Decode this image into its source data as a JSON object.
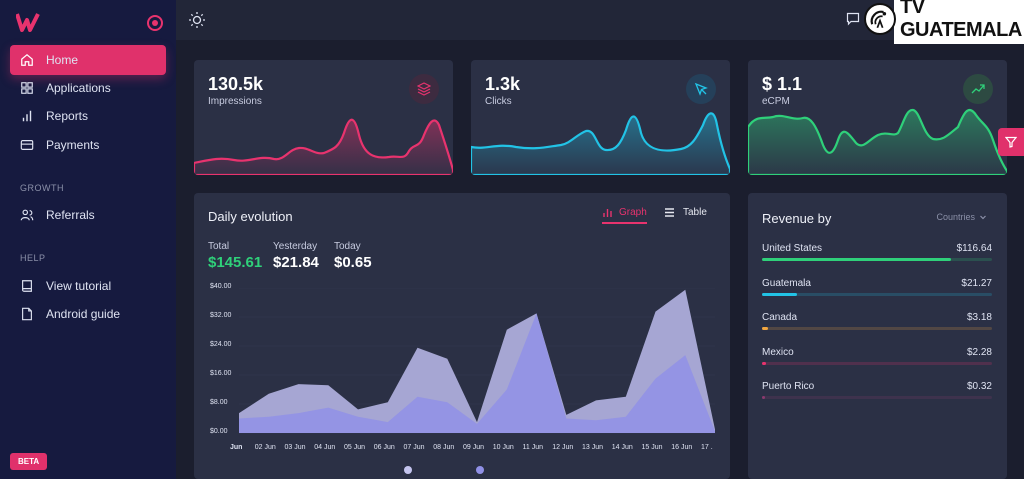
{
  "sidebar": {
    "logo_name": "w-logo",
    "items": [
      {
        "label": "Home",
        "icon": "home-icon"
      },
      {
        "label": "Applications",
        "icon": "grid-icon"
      },
      {
        "label": "Reports",
        "icon": "bar-chart-icon"
      },
      {
        "label": "Payments",
        "icon": "card-icon"
      },
      {
        "label": "Referrals",
        "icon": "users-icon"
      },
      {
        "label": "View tutorial",
        "icon": "book-icon"
      },
      {
        "label": "Android guide",
        "icon": "file-icon"
      }
    ],
    "sections": {
      "growth": "GROWTH",
      "help": "HELP"
    },
    "beta_label": "BETA"
  },
  "topbar": {
    "brand_text": "TV GUATEMALA"
  },
  "stats": [
    {
      "value": "130.5k",
      "label": "Impressions",
      "color": "#e8336e",
      "icon": "layers-icon"
    },
    {
      "value": "1.3k",
      "label": "Clicks",
      "color": "#22c3e6",
      "icon": "cursor-icon"
    },
    {
      "value": "$ 1.1",
      "label": "eCPM",
      "color": "#2fd07a",
      "icon": "trending-up-icon"
    }
  ],
  "daily": {
    "title": "Daily evolution",
    "graph_label": "Graph",
    "table_label": "Table",
    "total_label": "Total",
    "total_value": "$145.61",
    "yesterday_label": "Yesterday",
    "yesterday_value": "$21.84",
    "today_label": "Today",
    "today_value": "$0.65"
  },
  "chart_data": {
    "type": "area",
    "x": [
      "Jun",
      "02 Jun",
      "03 Jun",
      "04 Jun",
      "05 Jun",
      "06 Jun",
      "07 Jun",
      "08 Jun",
      "09 Jun",
      "10 Jun",
      "11 Jun",
      "12 Jun",
      "13 Jun",
      "14 Jun",
      "15 Jun",
      "16 Jun",
      "17 ."
    ],
    "yticks": [
      "$40.00",
      "$32.00",
      "$24.00",
      "$16.00",
      "$8.00",
      "$0.00"
    ],
    "ylim": [
      0,
      40
    ],
    "series": [
      {
        "values": [
          5.5,
          10.8,
          13.5,
          13.2,
          6.5,
          8.5,
          23.5,
          20.5,
          3.0,
          28.5,
          33.0,
          5.0,
          9.0,
          10.0,
          33.5,
          39.5,
          1.0
        ]
      },
      {
        "values": [
          4.0,
          4.5,
          5.5,
          7.0,
          4.5,
          3.0,
          10.0,
          8.5,
          2.5,
          12.0,
          33.0,
          4.0,
          3.5,
          4.5,
          15.0,
          21.5,
          0.5
        ]
      }
    ],
    "colors": [
      "#b4b4e2",
      "#9090e6"
    ]
  },
  "revenue": {
    "title": "Revenue by",
    "filter_label": "Countries",
    "rows": [
      {
        "name": "United States",
        "amount": "$116.64",
        "fraction": 0.82,
        "color": "#2fd07a"
      },
      {
        "name": "Guatemala",
        "amount": "$21.27",
        "fraction": 0.15,
        "color": "#22c3e6"
      },
      {
        "name": "Canada",
        "amount": "$3.18",
        "fraction": 0.025,
        "color": "#f2a640"
      },
      {
        "name": "Mexico",
        "amount": "$2.28",
        "fraction": 0.018,
        "color": "#e8336e"
      },
      {
        "name": "Puerto Rico",
        "amount": "$0.32",
        "fraction": 0.003,
        "color": "#8b3a6e"
      }
    ]
  }
}
